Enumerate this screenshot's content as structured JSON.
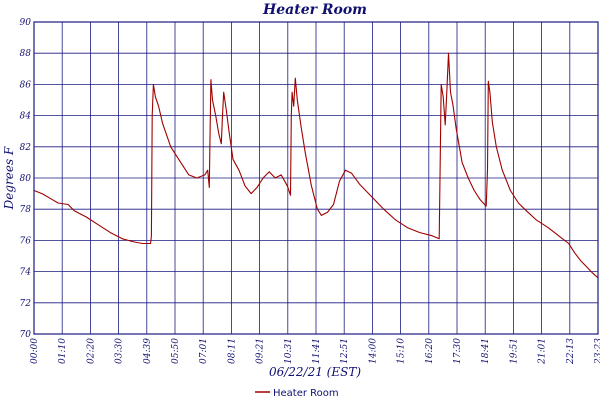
{
  "chart_data": {
    "type": "line",
    "title": "Heater Room",
    "xlabel": "06/22/21 (EST)",
    "ylabel": "Degrees F",
    "ylim": [
      70,
      90
    ],
    "y_ticks": [
      "70",
      "72",
      "74",
      "76",
      "78",
      "80",
      "82",
      "84",
      "86",
      "88",
      "90"
    ],
    "x_tick_labels": [
      "00:00",
      "01:10",
      "02:20",
      "03:30",
      "04:39",
      "05:50",
      "07:01",
      "08:11",
      "09:21",
      "10:31",
      "11:41",
      "12:51",
      "14:00",
      "15:10",
      "16:20",
      "17:30",
      "18:41",
      "19:51",
      "21:01",
      "22:13",
      "23:23"
    ],
    "x_range": [
      "00:00",
      "23:23"
    ],
    "grid": true,
    "legend_position": "bottom-center",
    "series": [
      {
        "name": "Heater Room",
        "color": "#a00000",
        "points": [
          [
            "00:00",
            79.2
          ],
          [
            "00:20",
            79.0
          ],
          [
            "00:40",
            78.7
          ],
          [
            "01:00",
            78.4
          ],
          [
            "01:25",
            78.3
          ],
          [
            "01:40",
            77.9
          ],
          [
            "02:10",
            77.5
          ],
          [
            "02:40",
            77.0
          ],
          [
            "03:10",
            76.5
          ],
          [
            "03:40",
            76.1
          ],
          [
            "04:10",
            75.9
          ],
          [
            "04:30",
            75.8
          ],
          [
            "04:50",
            75.8
          ],
          [
            "04:52",
            76.3
          ],
          [
            "04:54",
            84.0
          ],
          [
            "04:57",
            86.0
          ],
          [
            "05:02",
            85.2
          ],
          [
            "05:10",
            84.6
          ],
          [
            "05:20",
            83.5
          ],
          [
            "05:40",
            82.0
          ],
          [
            "06:05",
            81.0
          ],
          [
            "06:25",
            80.2
          ],
          [
            "06:45",
            80.0
          ],
          [
            "07:05",
            80.2
          ],
          [
            "07:12",
            80.5
          ],
          [
            "07:16",
            79.4
          ],
          [
            "07:18",
            83.0
          ],
          [
            "07:20",
            86.3
          ],
          [
            "07:24",
            85.0
          ],
          [
            "07:32",
            84.0
          ],
          [
            "07:40",
            82.8
          ],
          [
            "07:46",
            82.2
          ],
          [
            "07:49",
            84.0
          ],
          [
            "07:52",
            85.5
          ],
          [
            "07:58",
            84.4
          ],
          [
            "08:05",
            83.0
          ],
          [
            "08:15",
            81.2
          ],
          [
            "08:30",
            80.5
          ],
          [
            "08:45",
            79.5
          ],
          [
            "09:00",
            79.0
          ],
          [
            "09:15",
            79.4
          ],
          [
            "09:30",
            80.0
          ],
          [
            "09:45",
            80.4
          ],
          [
            "10:00",
            80.0
          ],
          [
            "10:15",
            80.2
          ],
          [
            "10:30",
            79.5
          ],
          [
            "10:38",
            78.9
          ],
          [
            "10:40",
            84.0
          ],
          [
            "10:42",
            85.5
          ],
          [
            "10:46",
            84.6
          ],
          [
            "10:50",
            86.4
          ],
          [
            "10:55",
            85.0
          ],
          [
            "11:05",
            83.2
          ],
          [
            "11:15",
            81.6
          ],
          [
            "11:30",
            79.5
          ],
          [
            "11:45",
            78.0
          ],
          [
            "11:55",
            77.6
          ],
          [
            "12:10",
            77.8
          ],
          [
            "12:25",
            78.3
          ],
          [
            "12:40",
            79.8
          ],
          [
            "12:55",
            80.5
          ],
          [
            "13:10",
            80.3
          ],
          [
            "13:30",
            79.6
          ],
          [
            "14:00",
            78.8
          ],
          [
            "14:30",
            78.0
          ],
          [
            "15:00",
            77.3
          ],
          [
            "15:30",
            76.8
          ],
          [
            "16:00",
            76.5
          ],
          [
            "16:30",
            76.3
          ],
          [
            "16:48",
            76.1
          ],
          [
            "16:51",
            82.0
          ],
          [
            "16:53",
            86.0
          ],
          [
            "16:58",
            85.2
          ],
          [
            "17:03",
            83.4
          ],
          [
            "17:07",
            85.5
          ],
          [
            "17:11",
            88.0
          ],
          [
            "17:16",
            85.5
          ],
          [
            "17:22",
            84.7
          ],
          [
            "17:30",
            83.2
          ],
          [
            "17:45",
            81.0
          ],
          [
            "18:00",
            80.0
          ],
          [
            "18:15",
            79.2
          ],
          [
            "18:30",
            78.6
          ],
          [
            "18:45",
            78.2
          ],
          [
            "18:48",
            80.5
          ],
          [
            "18:50",
            86.2
          ],
          [
            "18:54",
            85.5
          ],
          [
            "19:00",
            83.6
          ],
          [
            "19:10",
            82.0
          ],
          [
            "19:25",
            80.5
          ],
          [
            "19:45",
            79.2
          ],
          [
            "20:05",
            78.4
          ],
          [
            "20:25",
            77.9
          ],
          [
            "20:50",
            77.3
          ],
          [
            "21:20",
            76.8
          ],
          [
            "21:50",
            76.2
          ],
          [
            "22:10",
            75.8
          ],
          [
            "22:25",
            75.2
          ],
          [
            "22:40",
            74.7
          ],
          [
            "22:55",
            74.3
          ],
          [
            "23:10",
            73.9
          ],
          [
            "23:23",
            73.6
          ]
        ]
      }
    ]
  }
}
